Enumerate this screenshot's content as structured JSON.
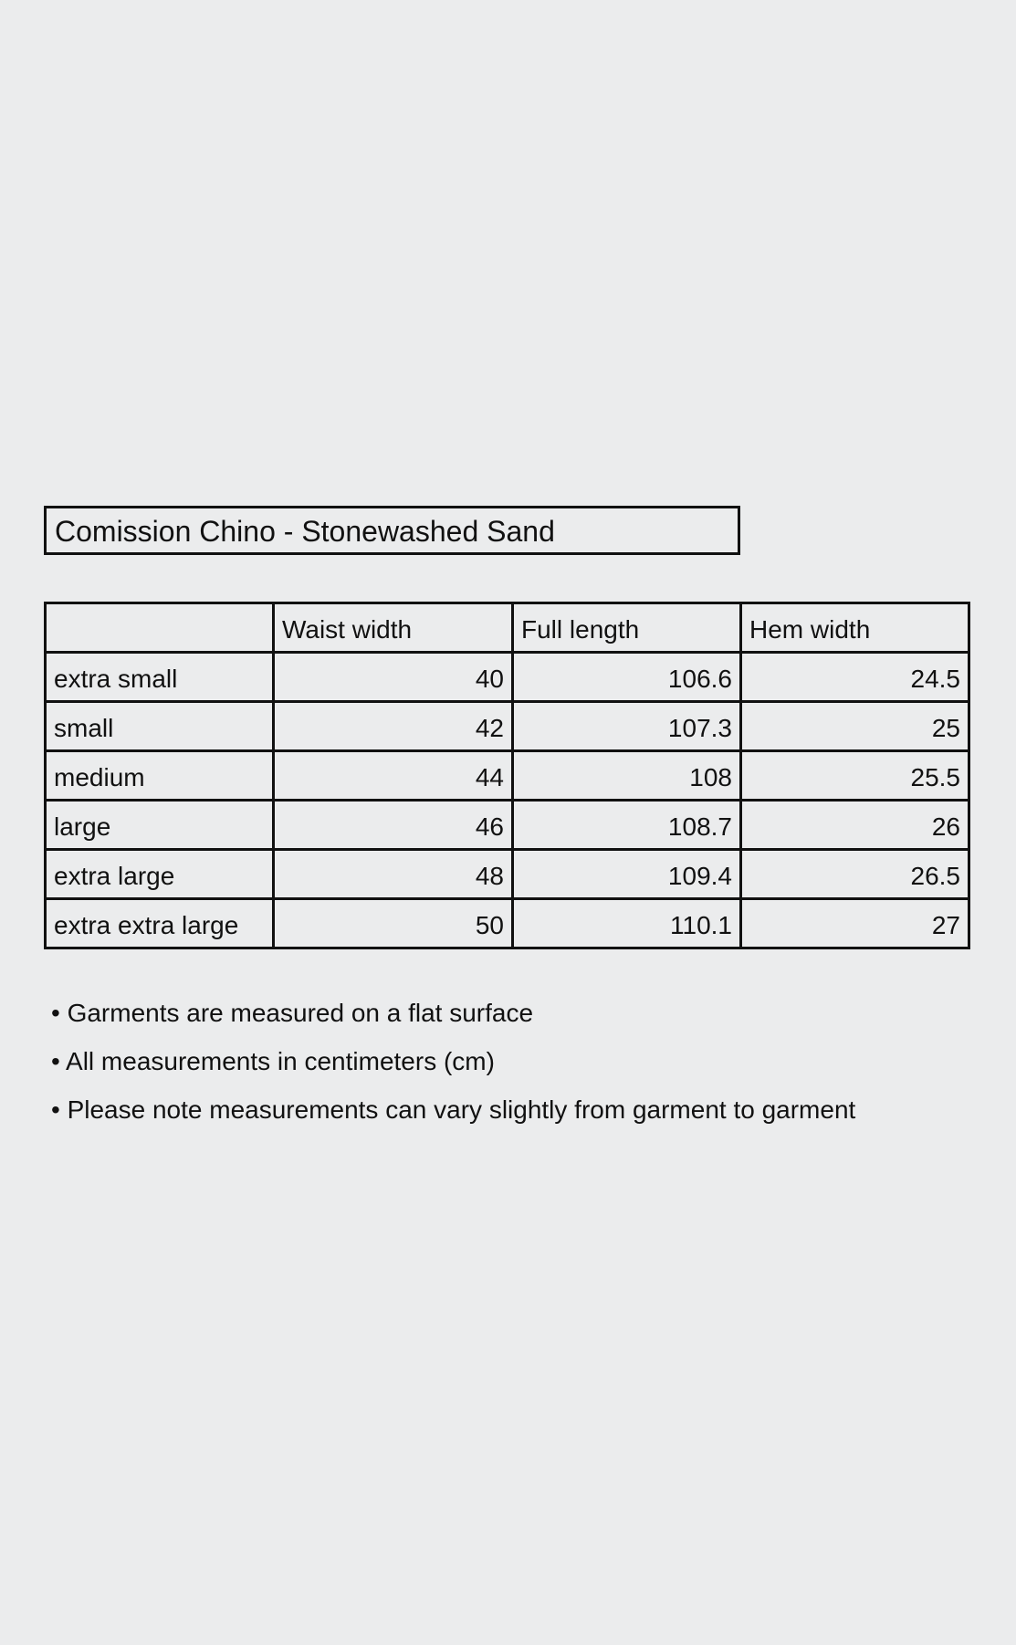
{
  "title": "Comission Chino - Stonewashed Sand",
  "table": {
    "headers": [
      "",
      "Waist width",
      "Full length",
      "Hem width"
    ],
    "rows": [
      [
        "extra small",
        "40",
        "106.6",
        "24.5"
      ],
      [
        "small",
        "42",
        "107.3",
        "25"
      ],
      [
        "medium",
        "44",
        "108",
        "25.5"
      ],
      [
        "large",
        "46",
        "108.7",
        "26"
      ],
      [
        "extra large",
        "48",
        "109.4",
        "26.5"
      ],
      [
        "extra extra large",
        "50",
        "110.1",
        "27"
      ]
    ]
  },
  "notes": [
    "• Garments are measured on a flat surface",
    "• All measurements in centimeters (cm)",
    "• Please note measurements can vary slightly from garment to garment"
  ]
}
